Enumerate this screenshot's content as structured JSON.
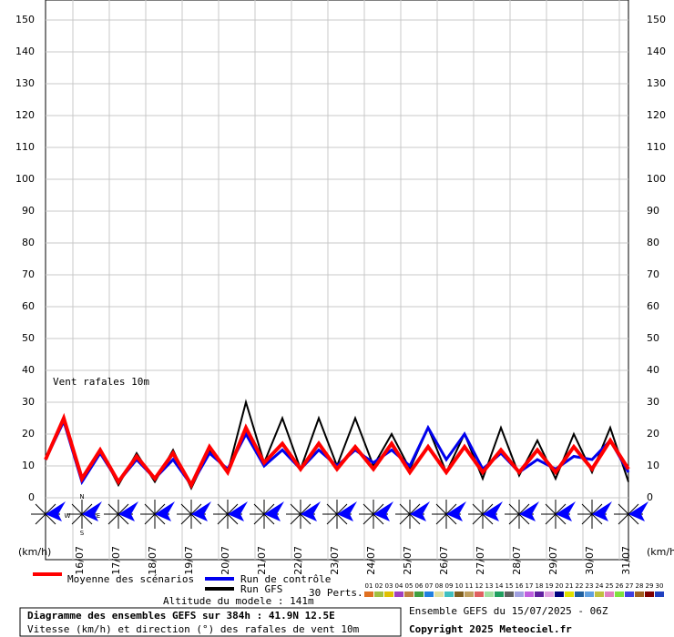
{
  "chart_data": {
    "type": "line",
    "annotation": "Vent rafales 10m",
    "y_unit_left": "(km/h)",
    "y_unit_right": "(km/h)",
    "compass": [
      "N",
      "W",
      "E",
      "S"
    ],
    "x": [
      0,
      12,
      24,
      36,
      48,
      60,
      72,
      84,
      96,
      108,
      120,
      132,
      144,
      156,
      168,
      180,
      192,
      204,
      216,
      228,
      240,
      252,
      264,
      276,
      288,
      300,
      312,
      324,
      336,
      348,
      360,
      372,
      384
    ],
    "xlim": [
      0,
      384
    ],
    "xticks": [
      {
        "value": 18,
        "label": "16/07"
      },
      {
        "value": 42,
        "label": "17/07"
      },
      {
        "value": 66,
        "label": "18/07"
      },
      {
        "value": 90,
        "label": "19/07"
      },
      {
        "value": 114,
        "label": "20/07"
      },
      {
        "value": 138,
        "label": "21/07"
      },
      {
        "value": 162,
        "label": "22/07"
      },
      {
        "value": 186,
        "label": "23/07"
      },
      {
        "value": 210,
        "label": "24/07"
      },
      {
        "value": 234,
        "label": "25/07"
      },
      {
        "value": 258,
        "label": "26/07"
      },
      {
        "value": 282,
        "label": "27/07"
      },
      {
        "value": 306,
        "label": "28/07"
      },
      {
        "value": 330,
        "label": "29/07"
      },
      {
        "value": 354,
        "label": "30/07"
      },
      {
        "value": 378,
        "label": "31/07"
      }
    ],
    "ylim": [
      0,
      150
    ],
    "yticks": [
      0,
      10,
      20,
      30,
      40,
      50,
      60,
      70,
      80,
      90,
      100,
      110,
      120,
      130,
      140,
      150
    ],
    "grid": true,
    "series": [
      {
        "name": "Run GFS",
        "color": "#000000",
        "width": 2,
        "values": [
          12,
          25,
          5,
          15,
          4,
          14,
          5,
          15,
          3,
          15,
          8,
          30,
          11,
          25,
          9,
          25,
          10,
          25,
          10,
          20,
          9,
          22,
          8,
          20,
          6,
          22,
          7,
          18,
          6,
          20,
          8,
          22,
          5
        ]
      },
      {
        "name": "Run de contrôle",
        "color": "#0000ee",
        "width": 3,
        "values": [
          12,
          24,
          5,
          14,
          5,
          12,
          6,
          12,
          4,
          14,
          9,
          20,
          10,
          15,
          9,
          15,
          10,
          15,
          11,
          15,
          10,
          22,
          12,
          20,
          9,
          14,
          8,
          12,
          9,
          13,
          12,
          18,
          8
        ]
      },
      {
        "name": "Moyenne des scénarios",
        "color": "#ff0000",
        "width": 4,
        "values": [
          12,
          25,
          6,
          15,
          5,
          13,
          6,
          14,
          4,
          16,
          8,
          22,
          11,
          17,
          9,
          17,
          9,
          16,
          9,
          17,
          8,
          16,
          8,
          16,
          8,
          15,
          8,
          15,
          8,
          16,
          9,
          18,
          9
        ]
      }
    ],
    "perturbations_label": "30 Perts.",
    "perturbations": [
      {
        "name": "01",
        "color": "#e07020"
      },
      {
        "name": "02",
        "color": "#a0c040"
      },
      {
        "name": "03",
        "color": "#e0c000"
      },
      {
        "name": "04",
        "color": "#a040c0"
      },
      {
        "name": "05",
        "color": "#c08040"
      },
      {
        "name": "06",
        "color": "#40a040"
      },
      {
        "name": "07",
        "color": "#2080e0"
      },
      {
        "name": "08",
        "color": "#e0e0a0"
      },
      {
        "name": "09",
        "color": "#40c0c0"
      },
      {
        "name": "10",
        "color": "#806020"
      },
      {
        "name": "11",
        "color": "#c0a060"
      },
      {
        "name": "12",
        "color": "#e06060"
      },
      {
        "name": "13",
        "color": "#a0e0a0"
      },
      {
        "name": "14",
        "color": "#20a060"
      },
      {
        "name": "15",
        "color": "#606060"
      },
      {
        "name": "16",
        "color": "#a0a0e0"
      },
      {
        "name": "17",
        "color": "#c060e0"
      },
      {
        "name": "18",
        "color": "#6020a0"
      },
      {
        "name": "19",
        "color": "#e0a0e0"
      },
      {
        "name": "20",
        "color": "#000080"
      },
      {
        "name": "21",
        "color": "#e0e000"
      },
      {
        "name": "22",
        "color": "#2060a0"
      },
      {
        "name": "23",
        "color": "#60a0e0"
      },
      {
        "name": "24",
        "color": "#c0c040"
      },
      {
        "name": "25",
        "color": "#e080c0"
      },
      {
        "name": "26",
        "color": "#80e040"
      },
      {
        "name": "27",
        "color": "#4040e0"
      },
      {
        "name": "28",
        "color": "#a06020"
      },
      {
        "name": "29",
        "color": "#800000"
      },
      {
        "name": "30",
        "color": "#2040c0"
      }
    ],
    "altitude": "Altitude du modele : 141m",
    "title": "Diagramme des ensembles GEFS sur 384h : 41.9N 12.5E",
    "subtitle": "Vitesse (km/h) et direction (°) des rafales de vent 10m",
    "run_info": "Ensemble GEFS du 15/07/2025 - 06Z",
    "copyright": "Copyright 2025 Meteociel.fr"
  }
}
